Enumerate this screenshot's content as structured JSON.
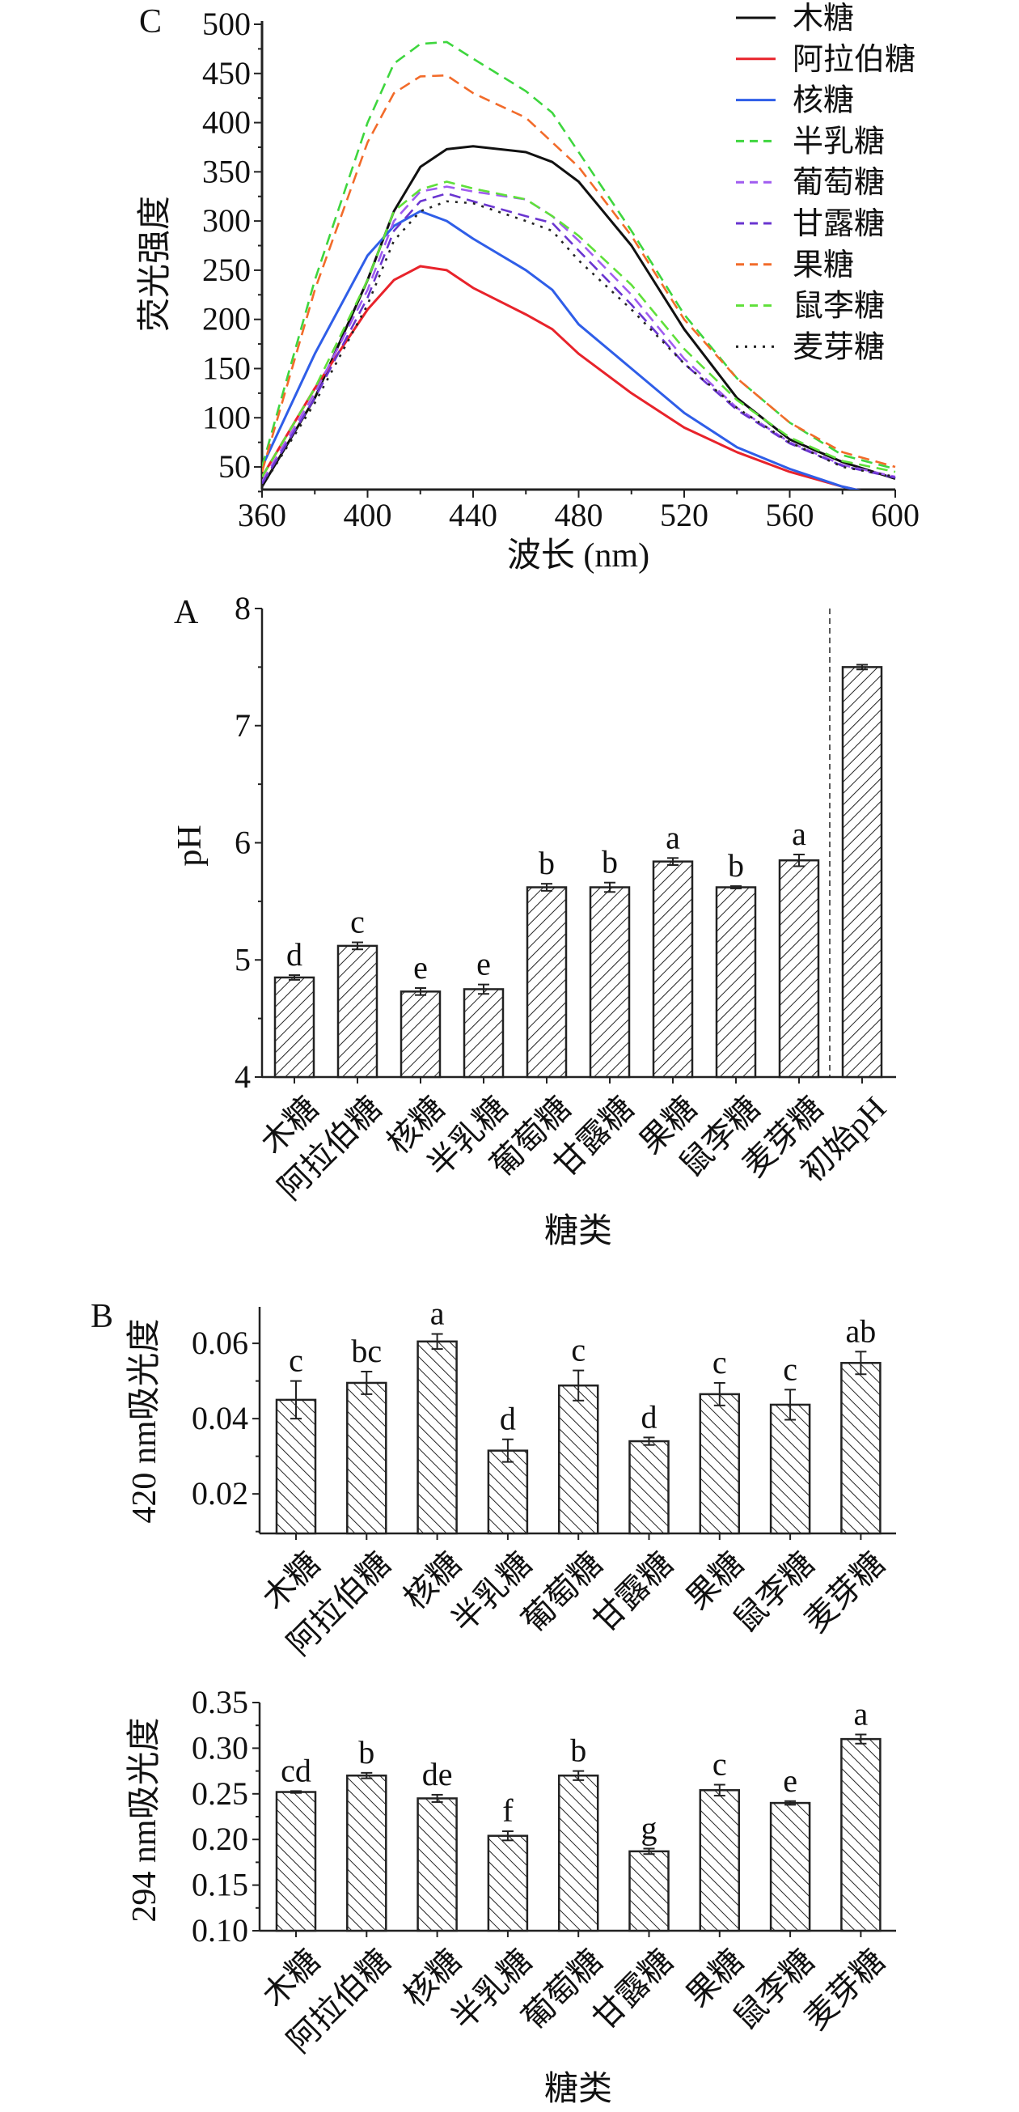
{
  "chart_data": [
    {
      "type": "line",
      "panel_label": "C",
      "title": "",
      "xlabel": "波长 (nm)",
      "ylabel": "荧光强度",
      "xlim": [
        360,
        600
      ],
      "ylim": [
        27,
        500
      ],
      "xticks": [
        360,
        400,
        440,
        480,
        520,
        560,
        600
      ],
      "xtick_labels": [
        "360",
        "400",
        "440",
        "480",
        "520",
        "560",
        "600"
      ],
      "yticks": [
        50,
        100,
        150,
        200,
        250,
        300,
        350,
        400,
        450,
        500
      ],
      "ytick_labels": [
        "50",
        "100",
        "150",
        "200",
        "250",
        "300",
        "350",
        "400",
        "450",
        "500"
      ],
      "legend_position": "top-right",
      "x": [
        360,
        380,
        400,
        410,
        420,
        430,
        440,
        460,
        470,
        480,
        500,
        520,
        540,
        560,
        580,
        600
      ],
      "series": [
        {
          "name": "木糖",
          "color": "#111111",
          "style": "solid",
          "y": [
            30,
            120,
            240,
            310,
            355,
            373,
            376,
            370,
            360,
            340,
            275,
            190,
            120,
            78,
            55,
            38
          ]
        },
        {
          "name": "阿拉伯糖",
          "color": "#e8232b",
          "style": "solid",
          "y": [
            40,
            130,
            210,
            240,
            254,
            250,
            232,
            205,
            190,
            165,
            125,
            90,
            65,
            45,
            30,
            18
          ]
        },
        {
          "name": "核糖",
          "color": "#2f5ee8",
          "style": "solid",
          "y": [
            50,
            165,
            265,
            295,
            310,
            300,
            282,
            250,
            230,
            195,
            150,
            105,
            70,
            48,
            30,
            18
          ]
        },
        {
          "name": "半乳糖",
          "color": "#3ed63e",
          "style": "dashed",
          "y": [
            50,
            240,
            400,
            460,
            480,
            482,
            465,
            432,
            410,
            370,
            290,
            205,
            140,
            95,
            62,
            48
          ]
        },
        {
          "name": "葡萄糖",
          "color": "#a05cf0",
          "style": "dashed",
          "y": [
            35,
            125,
            230,
            300,
            330,
            335,
            330,
            322,
            305,
            280,
            225,
            160,
            110,
            75,
            52,
            40
          ]
        },
        {
          "name": "甘露糖",
          "color": "#6a35d0",
          "style": "dashed",
          "y": [
            33,
            120,
            222,
            290,
            320,
            328,
            320,
            305,
            298,
            270,
            215,
            155,
            108,
            74,
            51,
            39
          ]
        },
        {
          "name": "果糖",
          "color": "#f26b2a",
          "style": "dashed",
          "y": [
            45,
            230,
            380,
            430,
            447,
            448,
            430,
            405,
            380,
            355,
            285,
            200,
            140,
            95,
            65,
            50
          ]
        },
        {
          "name": "鼠李糖",
          "color": "#5fe03a",
          "style": "dashed",
          "y": [
            40,
            130,
            240,
            310,
            332,
            340,
            333,
            322,
            305,
            285,
            235,
            170,
            118,
            80,
            56,
            45
          ]
        },
        {
          "name": "麦芽糖",
          "color": "#222222",
          "style": "dotted",
          "y": [
            30,
            115,
            215,
            280,
            310,
            320,
            318,
            300,
            290,
            260,
            210,
            155,
            110,
            75,
            50,
            40
          ]
        }
      ]
    },
    {
      "type": "bar",
      "panel_label": "A",
      "title": "",
      "xlabel": "糖类",
      "ylabel": "pH",
      "ylim": [
        4,
        8
      ],
      "yticks": [
        4,
        5,
        6,
        7,
        8
      ],
      "ytick_labels": [
        "4",
        "5",
        "6",
        "7",
        "8"
      ],
      "categories": [
        "木糖",
        "阿拉伯糖",
        "核糖",
        "半乳糖",
        "葡萄糖",
        "甘露糖",
        "果糖",
        "鼠李糖",
        "麦芽糖",
        "初始pH"
      ],
      "values": [
        4.85,
        5.12,
        4.73,
        4.75,
        5.62,
        5.62,
        5.84,
        5.62,
        5.85,
        7.5
      ],
      "errors": [
        0.02,
        0.03,
        0.03,
        0.04,
        0.03,
        0.04,
        0.03,
        0.01,
        0.05,
        0.02
      ],
      "letters": [
        "d",
        "c",
        "e",
        "e",
        "b",
        "b",
        "a",
        "b",
        "a",
        ""
      ],
      "separator_after_index": 8
    },
    {
      "type": "bar",
      "panel_label": "B",
      "title": "",
      "xlabel": "",
      "ylabel": "420 nm吸光度",
      "ylim": [
        0.0095,
        0.0697
      ],
      "yticks": [
        0.02,
        0.04,
        0.06
      ],
      "ytick_labels": [
        "0.02",
        "0.04",
        "0.06"
      ],
      "categories": [
        "木糖",
        "阿拉伯糖",
        "核糖",
        "半乳糖",
        "葡萄糖",
        "甘露糖",
        "果糖",
        "鼠李糖",
        "麦芽糖"
      ],
      "values": [
        0.045,
        0.0495,
        0.0605,
        0.0315,
        0.0488,
        0.034,
        0.0465,
        0.0437,
        0.0548
      ],
      "errors": [
        0.005,
        0.003,
        0.002,
        0.003,
        0.004,
        0.001,
        0.003,
        0.004,
        0.003
      ],
      "letters": [
        "c",
        "bc",
        "a",
        "d",
        "c",
        "d",
        "c",
        "c",
        "ab"
      ]
    },
    {
      "type": "bar",
      "panel_label": "",
      "title": "",
      "xlabel": "糖类",
      "ylabel": "294 nm吸光度",
      "ylim": [
        0.1,
        0.35
      ],
      "yticks": [
        0.1,
        0.15,
        0.2,
        0.25,
        0.3,
        0.35
      ],
      "ytick_labels": [
        "0.10",
        "0.15",
        "0.20",
        "0.25",
        "0.30",
        "0.35"
      ],
      "categories": [
        "木糖",
        "阿拉伯糖",
        "核糖",
        "半乳糖",
        "葡萄糖",
        "甘露糖",
        "果糖",
        "鼠李糖",
        "麦芽糖"
      ],
      "values": [
        0.252,
        0.27,
        0.245,
        0.204,
        0.27,
        0.187,
        0.254,
        0.24,
        0.31
      ],
      "errors": [
        0.001,
        0.003,
        0.004,
        0.005,
        0.005,
        0.003,
        0.006,
        0.002,
        0.005
      ],
      "letters": [
        "cd",
        "b",
        "de",
        "f",
        "b",
        "g",
        "c",
        "e",
        "a"
      ]
    }
  ]
}
